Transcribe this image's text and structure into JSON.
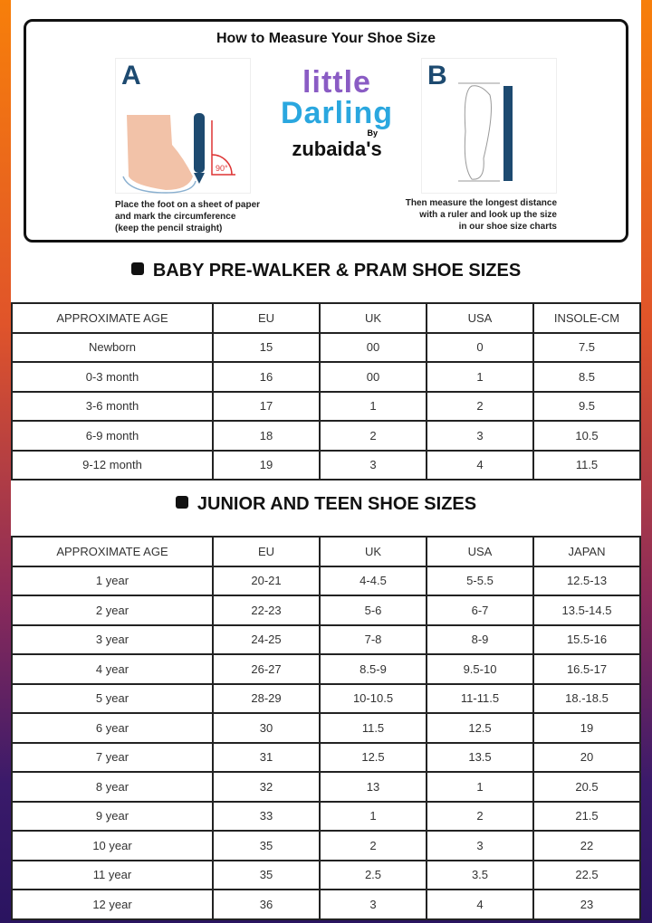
{
  "howto": {
    "title": "How to Measure Your Shoe Size",
    "step_a": {
      "letter": "A",
      "caption": [
        "Place the foot on a sheet of paper",
        "and mark the circumference",
        "(keep the pencil straight)"
      ],
      "angle_label": "90°"
    },
    "step_b": {
      "letter": "B",
      "caption": [
        "Then measure the longest distance",
        "with a ruler and look up the size",
        "in our shoe size charts"
      ]
    },
    "logo": {
      "line1": "little",
      "line2": "Darling",
      "by": "By",
      "brand": "zubaida's"
    }
  },
  "baby": {
    "title": "BABY PRE-WALKER & PRAM SHOE SIZES",
    "headers": [
      "APPROXIMATE AGE",
      "EU",
      "UK",
      "USA",
      "INSOLE-CM"
    ],
    "rows": [
      [
        "Newborn",
        "15",
        "00",
        "0",
        "7.5"
      ],
      [
        "0-3 month",
        "16",
        "00",
        "1",
        "8.5"
      ],
      [
        "3-6 month",
        "17",
        "1",
        "2",
        "9.5"
      ],
      [
        "6-9 month",
        "18",
        "2",
        "3",
        "10.5"
      ],
      [
        "9-12 month",
        "19",
        "3",
        "4",
        "11.5"
      ]
    ]
  },
  "junior": {
    "title": "JUNIOR AND TEEN SHOE SIZES",
    "headers": [
      "APPROXIMATE AGE",
      "EU",
      "UK",
      "USA",
      "JAPAN"
    ],
    "rows": [
      [
        "1 year",
        "20-21",
        "4-4.5",
        "5-5.5",
        "12.5-13"
      ],
      [
        "2 year",
        "22-23",
        "5-6",
        "6-7",
        "13.5-14.5"
      ],
      [
        "3 year",
        "24-25",
        "7-8",
        "8-9",
        "15.5-16"
      ],
      [
        "4 year",
        "26-27",
        "8.5-9",
        "9.5-10",
        "16.5-17"
      ],
      [
        "5 year",
        "28-29",
        "10-10.5",
        "11-11.5",
        "18.-18.5"
      ],
      [
        "6 year",
        "30",
        "11.5",
        "12.5",
        "19"
      ],
      [
        "7 year",
        "31",
        "12.5",
        "13.5",
        "20"
      ],
      [
        "8 year",
        "32",
        "13",
        "1",
        "20.5"
      ],
      [
        "9 year",
        "33",
        "1",
        "2",
        "21.5"
      ],
      [
        "10 year",
        "35",
        "2",
        "3",
        "22"
      ],
      [
        "11 year",
        "35",
        "2.5",
        "3.5",
        "22.5"
      ],
      [
        "12 year",
        "36",
        "3",
        "4",
        "23"
      ]
    ]
  }
}
